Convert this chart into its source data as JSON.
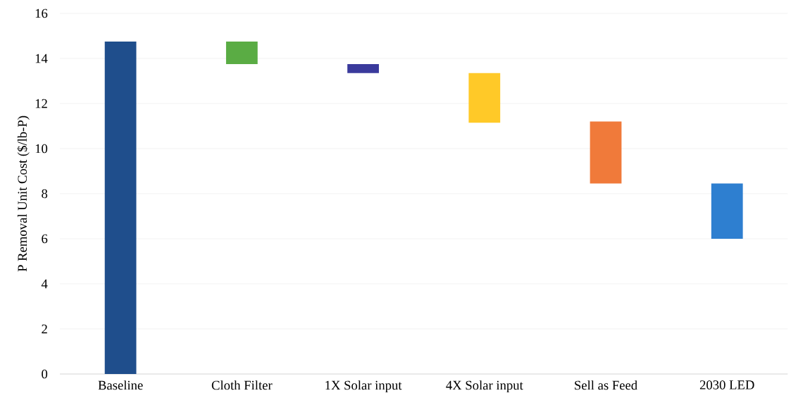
{
  "chart_data": {
    "type": "bar",
    "ylabel": "P Removal Unit Cost ($/lb-P)",
    "categories": [
      "Baseline",
      "Cloth Filter",
      "1X Solar input",
      "4X Solar input",
      "Sell as Feed",
      "2030 LED"
    ],
    "values": [
      14.75,
      1.0,
      0.4,
      2.2,
      2.75,
      2.45
    ],
    "base": [
      0,
      13.75,
      13.35,
      11.15,
      8.45,
      6.0
    ],
    "colors": [
      "#1f4e8c",
      "#5aac44",
      "#3a3a9c",
      "#ffc928",
      "#f07a3a",
      "#2e7fd0"
    ],
    "ylim": [
      0,
      16
    ],
    "yticks": [
      0,
      2,
      4,
      6,
      8,
      10,
      12,
      14,
      16
    ],
    "grid": "y"
  }
}
